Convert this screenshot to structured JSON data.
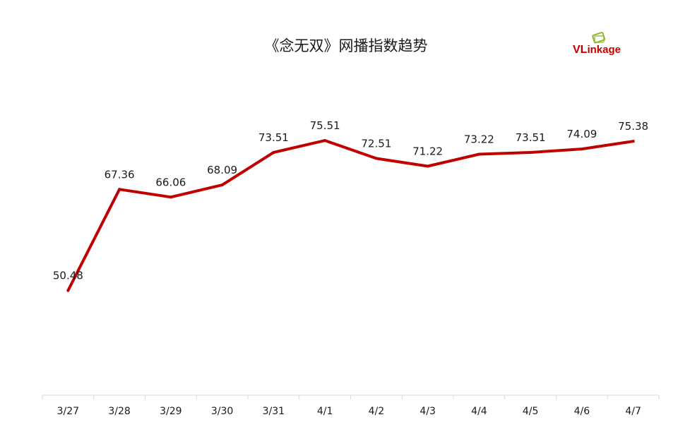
{
  "brand": {
    "lead": "VL",
    "rest": "inkage",
    "lead_color": "#c00000",
    "rest_color": "#c00000",
    "mark_color": "#8cb832"
  },
  "chart_data": {
    "type": "line",
    "title": "《念无双》网播指数趋势",
    "xlabel": "",
    "ylabel": "",
    "categories": [
      "3/27",
      "3/28",
      "3/29",
      "3/30",
      "3/31",
      "4/1",
      "4/2",
      "4/3",
      "4/4",
      "4/5",
      "4/6",
      "4/7"
    ],
    "series": [
      {
        "values": [
          50.48,
          67.36,
          66.06,
          68.09,
          73.51,
          75.51,
          72.51,
          71.22,
          73.22,
          73.51,
          74.09,
          75.38
        ],
        "labels": [
          "50.48",
          "67.36",
          "66.06",
          "68.09",
          "73.51",
          "75.51",
          "72.51",
          "71.22",
          "73.22",
          "73.51",
          "74.09",
          "75.38"
        ],
        "color": "#c00000"
      }
    ],
    "ylim": [
      33,
      86
    ],
    "grid": false,
    "legend": "none",
    "data_labels": true
  }
}
